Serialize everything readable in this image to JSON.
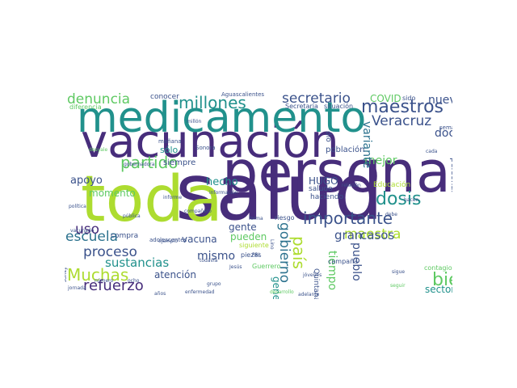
{
  "colors": {
    "background": "#ffffff",
    "palette": [
      "#440154",
      "#472d7b",
      "#3b528b",
      "#2c728e",
      "#21918c",
      "#28ae80",
      "#5ec962",
      "#addc30",
      "#fde725"
    ]
  },
  "words": [
    {
      "text": "salud",
      "color": "#472d7b"
    },
    {
      "text": "vacunación",
      "color": "#472d7b"
    },
    {
      "text": "persona",
      "color": "#472d7b"
    },
    {
      "text": "medicamento",
      "color": "#21918c"
    },
    {
      "text": "toda",
      "color": "#addc30"
    },
    {
      "text": "maestros",
      "color": "#3b528b"
    },
    {
      "text": "millones",
      "color": "#21918c"
    },
    {
      "text": "denuncia",
      "color": "#5ec962"
    },
    {
      "text": "secretario",
      "color": "#3b528b"
    },
    {
      "text": "partido",
      "color": "#5ec962"
    },
    {
      "text": "Muchas",
      "color": "#addc30"
    },
    {
      "text": "refuerzo",
      "color": "#472d7b"
    },
    {
      "text": "escuela",
      "color": "#2c728e"
    },
    {
      "text": "proceso",
      "color": "#3b528b"
    },
    {
      "text": "importante",
      "color": "#3b528b"
    },
    {
      "text": "maestra",
      "color": "#addc30"
    },
    {
      "text": "dosis",
      "color": "#21918c"
    },
    {
      "text": "bien",
      "color": "#5ec962"
    },
    {
      "text": "manera",
      "color": "#472d7b"
    },
    {
      "text": "uso",
      "color": "#472d7b"
    },
    {
      "text": "gobierno",
      "color": "#2c728e"
    },
    {
      "text": "país",
      "color": "#addc30"
    },
    {
      "text": "Veracruz",
      "color": "#3b528b"
    },
    {
      "text": "diferente",
      "color": "#3b528b"
    },
    {
      "text": "sustancias",
      "color": "#21918c"
    },
    {
      "text": "mejor",
      "color": "#5ec962"
    },
    {
      "text": "casos",
      "color": "#3b528b"
    },
    {
      "text": "gran",
      "color": "#3b528b"
    },
    {
      "text": "mismo",
      "color": "#3b528b"
    },
    {
      "text": "vacuna",
      "color": "#3b528b"
    },
    {
      "text": "pueden",
      "color": "#5ec962"
    },
    {
      "text": "hecho",
      "color": "#21918c"
    },
    {
      "text": "apoyo",
      "color": "#3b528b"
    },
    {
      "text": "momento",
      "color": "#5ec962"
    },
    {
      "text": "atención",
      "color": "#3b528b"
    },
    {
      "text": "nuevo",
      "color": "#3b528b"
    },
    {
      "text": "doctor",
      "color": "#3b528b"
    },
    {
      "text": "COVID",
      "color": "#5ec962"
    },
    {
      "text": "HUGO",
      "color": "#3b528b"
    },
    {
      "text": "variante",
      "color": "#2c728e"
    },
    {
      "text": "sector",
      "color": "#21918c"
    },
    {
      "text": "pueblo",
      "color": "#3b528b"
    },
    {
      "text": "tiempo",
      "color": "#5ec962"
    },
    {
      "text": "general",
      "color": "#21918c"
    },
    {
      "text": "gente",
      "color": "#3b528b"
    },
    {
      "text": "sólo",
      "color": "#21918c"
    },
    {
      "text": "población",
      "color": "#3b528b"
    },
    {
      "text": "saludo",
      "color": "#3b528b"
    },
    {
      "text": "haciendo",
      "color": "#3b528b"
    },
    {
      "text": "riesgo",
      "color": "#3b528b"
    },
    {
      "text": "piezas",
      "color": "#3b528b"
    },
    {
      "text": "Guerrero",
      "color": "#5ec962"
    },
    {
      "text": "campaña",
      "color": "#3b528b"
    },
    {
      "text": "siguiente",
      "color": "#addc30"
    },
    {
      "text": "contagio",
      "color": "#5ec962"
    },
    {
      "text": "precisamente",
      "color": "#5ec962"
    },
    {
      "text": "Quintana Roo",
      "color": "#3b528b"
    },
    {
      "text": "Secretaría",
      "color": "#3b528b"
    },
    {
      "text": "situación",
      "color": "#3b528b"
    },
    {
      "text": "sido",
      "color": "#3b528b"
    },
    {
      "text": "conocer",
      "color": "#3b528b"
    },
    {
      "text": "Aguascalientes",
      "color": "#3b528b"
    },
    {
      "text": "siempre",
      "color": "#3b528b"
    },
    {
      "text": "compra",
      "color": "#3b528b"
    },
    {
      "text": "personal",
      "color": "#3b528b"
    },
    {
      "text": "través",
      "color": "#3b528b"
    },
    {
      "text": "sino",
      "color": "#3b528b"
    },
    {
      "text": "Educación",
      "color": "#addc30"
    },
    {
      "text": "dio",
      "color": "#3b528b"
    },
    {
      "text": "parte",
      "color": "#3b528b"
    },
    {
      "text": "semana",
      "color": "#3b528b"
    },
    {
      "text": "millón",
      "color": "#3b528b"
    },
    {
      "text": "diferencia",
      "color": "#5ec962"
    },
    {
      "text": "mañana",
      "color": "#3b528b"
    },
    {
      "text": "Sonora",
      "color": "#3b528b"
    },
    {
      "text": "desyale",
      "color": "#5ec962"
    },
    {
      "text": "gobernadora",
      "color": "#3b528b"
    },
    {
      "text": "información",
      "color": "#3b528b"
    },
    {
      "text": "informe",
      "color": "#3b528b"
    },
    {
      "text": "compañero",
      "color": "#3b528b"
    },
    {
      "text": "política",
      "color": "#3b528b"
    },
    {
      "text": "pública",
      "color": "#3b528b"
    },
    {
      "text": "vacunado",
      "color": "#3b528b"
    },
    {
      "text": "adolescentes",
      "color": "#3b528b"
    },
    {
      "text": "ejemplo",
      "color": "#3b528b"
    },
    {
      "text": "jornada",
      "color": "#3b528b"
    },
    {
      "text": "años",
      "color": "#3b528b"
    },
    {
      "text": "favor",
      "color": "#3b528b"
    },
    {
      "text": "ocho",
      "color": "#3b528b"
    },
    {
      "text": "número",
      "color": "#3b528b"
    },
    {
      "text": "grupo",
      "color": "#3b528b"
    },
    {
      "text": "forma",
      "color": "#3b528b"
    },
    {
      "text": "enfermedad",
      "color": "#3b528b"
    },
    {
      "text": "desarrollo",
      "color": "#5ec962"
    },
    {
      "text": "adelante",
      "color": "#3b528b"
    },
    {
      "text": "jóvenes",
      "color": "#3b528b"
    },
    {
      "text": "seguir",
      "color": "#5ec962"
    },
    {
      "text": "sigue",
      "color": "#3b528b"
    },
    {
      "text": "relación",
      "color": "#3b528b"
    },
    {
      "text": "hacen",
      "color": "#3b528b"
    },
    {
      "text": "debe",
      "color": "#3b528b"
    },
    {
      "text": "cada",
      "color": "#3b528b"
    },
    {
      "text": "Jesús",
      "color": "#3b528b"
    },
    {
      "text": "Lino",
      "color": "#3b528b"
    },
    {
      "text": "PRI",
      "color": "#3b528b"
    },
    {
      "text": "todavía",
      "color": "#3b528b"
    }
  ]
}
